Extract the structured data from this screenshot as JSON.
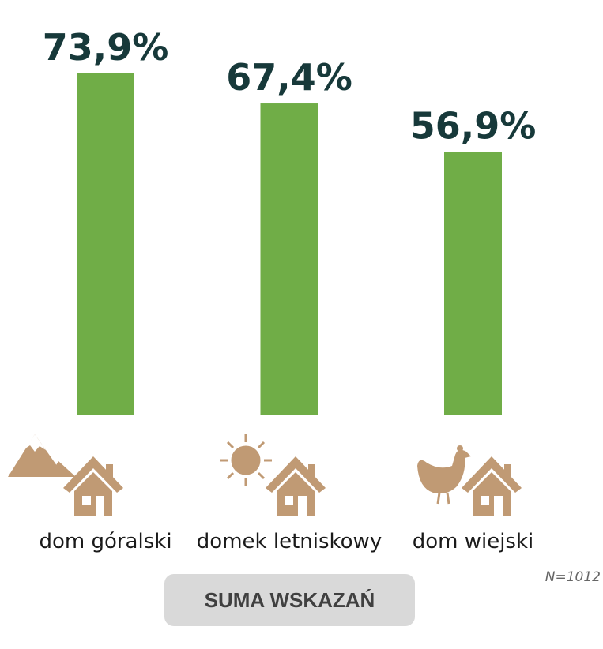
{
  "chart_data": {
    "type": "bar",
    "categories": [
      "dom góralski",
      "domek letniskowy",
      "dom wiejski"
    ],
    "values": [
      73.9,
      67.4,
      56.9
    ],
    "value_labels": [
      "73,9%",
      "67,4%",
      "56,9%"
    ],
    "color": "#70ad47",
    "note": "N=1012",
    "button": "SUMA WSKAZAŃ"
  }
}
